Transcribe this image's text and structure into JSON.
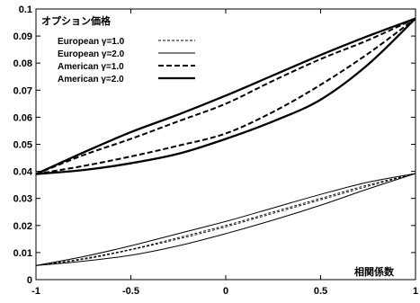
{
  "chart_data": {
    "type": "line",
    "title": "",
    "ylabel": "オプション価格",
    "xlabel": "相関係数",
    "xlim": [
      -1,
      1
    ],
    "ylim": [
      0,
      0.1
    ],
    "xticks": [
      -1,
      -0.5,
      0,
      0.5,
      1
    ],
    "xtick_labels": [
      "-1",
      "-0.5",
      "0",
      "0.5",
      "1"
    ],
    "yticks": [
      0,
      0.01,
      0.02,
      0.03,
      0.04,
      0.05,
      0.06,
      0.07,
      0.08,
      0.09,
      0.1
    ],
    "ytick_labels": [
      "0",
      "0.01",
      "0.02",
      "0.03",
      "0.04",
      "0.05",
      "0.06",
      "0.07",
      "0.08",
      "0.09",
      "0.1"
    ],
    "grid": false,
    "legend_position": "top-left",
    "legend": [
      {
        "label": "European γ=1.0",
        "style": "thin-dashed"
      },
      {
        "label": "European γ=2.0",
        "style": "thin-solid"
      },
      {
        "label": "American γ=1.0",
        "style": "thick-dashed"
      },
      {
        "label": "American γ=2.0",
        "style": "thick-solid"
      }
    ],
    "x": [
      -1,
      -0.75,
      -0.5,
      -0.25,
      0,
      0.25,
      0.5,
      0.75,
      1
    ],
    "series": [
      {
        "name": "European γ=1.0",
        "group": "lower",
        "style": "thin-dashed",
        "values": [
          0.0052,
          0.0075,
          0.011,
          0.015,
          0.0195,
          0.0245,
          0.0295,
          0.0345,
          0.0392
        ]
      },
      {
        "name": "European γ=1.0",
        "group": "lower-2",
        "style": "thin-dashed",
        "values": [
          0.0052,
          0.0078,
          0.0112,
          0.0155,
          0.02,
          0.025,
          0.03,
          0.035,
          0.0392
        ]
      },
      {
        "name": "European γ=2.0",
        "group": "lower-upper",
        "style": "thin-solid",
        "values": [
          0.0052,
          0.0085,
          0.0125,
          0.017,
          0.0215,
          0.0265,
          0.0315,
          0.036,
          0.0392
        ]
      },
      {
        "name": "European γ=2.0",
        "group": "lower-lower",
        "style": "thin-solid",
        "values": [
          0.0052,
          0.0068,
          0.009,
          0.0125,
          0.017,
          0.022,
          0.0275,
          0.0335,
          0.0392
        ]
      },
      {
        "name": "American γ=1.0",
        "group": "upper-outer",
        "style": "thick-dashed",
        "values": [
          0.039,
          0.046,
          0.052,
          0.0585,
          0.065,
          0.0735,
          0.0815,
          0.0885,
          0.0965
        ]
      },
      {
        "name": "American γ=1.0",
        "group": "upper-inner",
        "style": "thick-dashed",
        "values": [
          0.039,
          0.042,
          0.0455,
          0.0495,
          0.054,
          0.062,
          0.072,
          0.0835,
          0.0965
        ]
      },
      {
        "name": "American γ=2.0",
        "group": "upper-outer",
        "style": "thick-solid",
        "values": [
          0.039,
          0.047,
          0.0545,
          0.061,
          0.068,
          0.0755,
          0.083,
          0.09,
          0.0965
        ]
      },
      {
        "name": "American γ=2.0",
        "group": "upper-inner",
        "style": "thick-solid",
        "values": [
          0.039,
          0.0405,
          0.043,
          0.0465,
          0.052,
          0.0585,
          0.0665,
          0.0795,
          0.0965
        ]
      }
    ]
  }
}
